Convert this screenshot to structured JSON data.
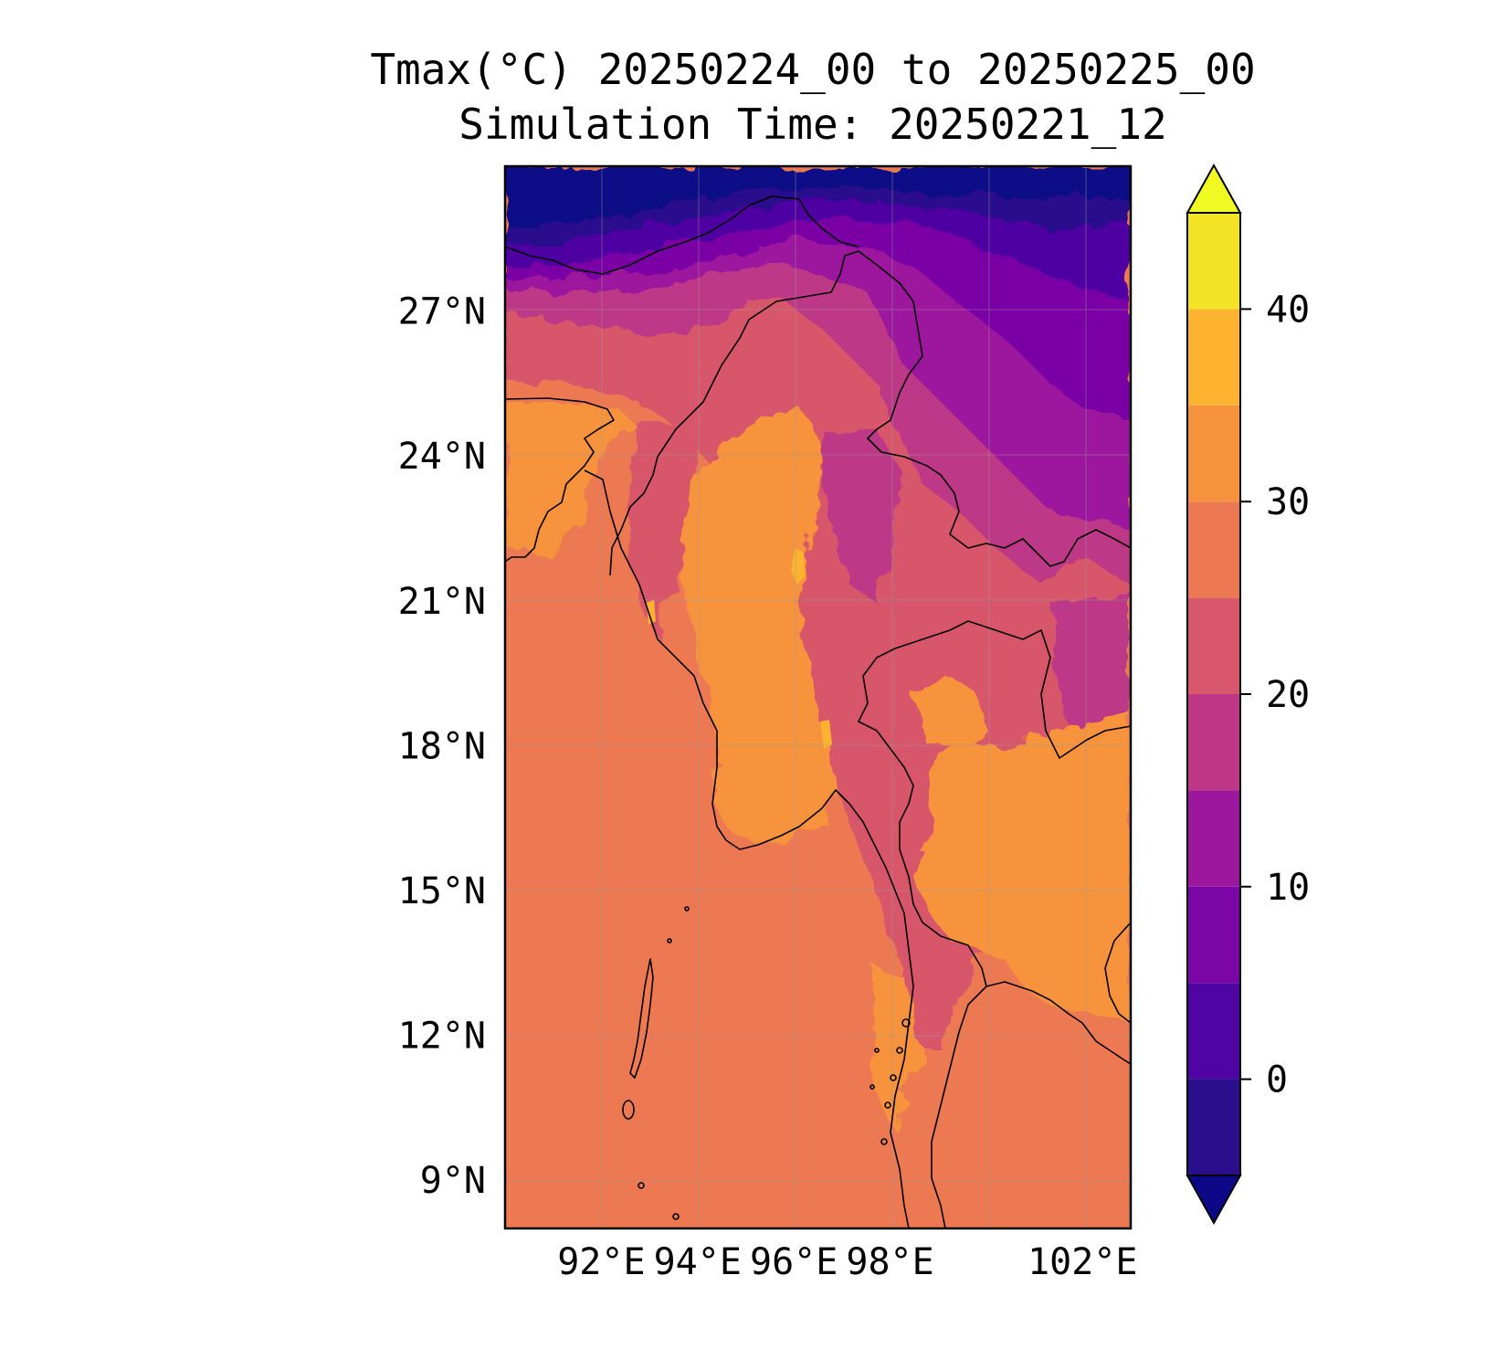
{
  "title": {
    "line1": "Tmax(°C) 20250224_00 to 20250225_00",
    "line2": "Simulation Time: 20250221_12"
  },
  "map": {
    "variable": "Tmax(°C)",
    "valid_period": "20250224_00 to 20250225_00",
    "simulation_time": "20250221_12",
    "lon_range": [
      90,
      103
    ],
    "lat_range": [
      8,
      30
    ],
    "lon_ticks": [
      {
        "value": 92,
        "label": "92°E"
      },
      {
        "value": 94,
        "label": "94°E"
      },
      {
        "value": 96,
        "label": "96°E"
      },
      {
        "value": 98,
        "label": "98°E"
      },
      {
        "value": 102,
        "label": "102°E"
      }
    ],
    "lat_ticks": [
      {
        "value": 27,
        "label": "27°N"
      },
      {
        "value": 24,
        "label": "24°N"
      },
      {
        "value": 21,
        "label": "21°N"
      },
      {
        "value": 18,
        "label": "18°N"
      },
      {
        "value": 15,
        "label": "15°N"
      },
      {
        "value": 12,
        "label": "12°N"
      },
      {
        "value": 9,
        "label": "9°N"
      }
    ],
    "gridlines": true,
    "colormap": "plasma"
  },
  "colorbar": {
    "levels": [
      -5,
      0,
      5,
      10,
      15,
      20,
      25,
      30,
      35,
      40,
      45
    ],
    "colors": [
      "#2a0f8c",
      "#4f05a3",
      "#7a06a6",
      "#9c179e",
      "#bd3786",
      "#d8576b",
      "#ed7953",
      "#f7923c",
      "#fdb32f",
      "#f3e426"
    ],
    "under_color": "#0d0887",
    "over_color": "#f0f921",
    "ticks": [
      {
        "value": 0,
        "label": "0"
      },
      {
        "value": 10,
        "label": "10"
      },
      {
        "value": 20,
        "label": "20"
      },
      {
        "value": 30,
        "label": "30"
      },
      {
        "value": 40,
        "label": "40"
      }
    ],
    "extend": "both"
  }
}
